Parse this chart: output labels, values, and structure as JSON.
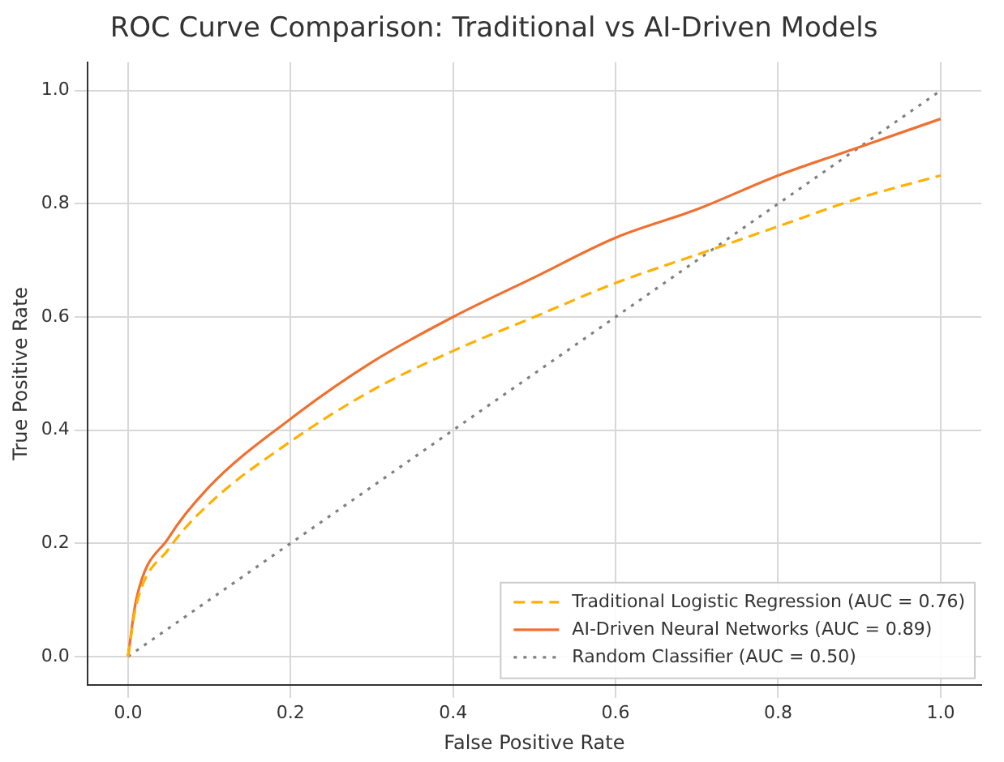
{
  "chart_data": {
    "type": "line",
    "title": "ROC Curve Comparison: Traditional vs AI-Driven Models",
    "xlabel": "False Positive Rate",
    "ylabel": "True Positive Rate",
    "xlim": [
      -0.05,
      1.05
    ],
    "ylim": [
      -0.05,
      1.05
    ],
    "xticks": [
      {
        "value": 0,
        "label": "0.0"
      },
      0.2,
      0.4,
      0.6,
      0.8,
      {
        "value": 1,
        "label": "1.0"
      }
    ],
    "yticks": [
      {
        "value": 0,
        "label": "0.0"
      },
      0.2,
      0.4,
      0.6,
      0.8,
      {
        "value": 1,
        "label": "1.0"
      }
    ],
    "grid": true,
    "legend": "bottom right",
    "series": [
      {
        "name": "Traditional Logistic Regression (AUC = 0.76)",
        "color": "#ffb000",
        "line_style": "dashed",
        "x": [
          0,
          0.01,
          0.05,
          0.1,
          0.2,
          0.3,
          0.4,
          0.5,
          0.6,
          0.7,
          0.8,
          0.9,
          1
        ],
        "values": [
          0,
          0.09,
          0.19,
          0.27,
          0.38,
          0.47,
          0.54,
          0.6,
          0.66,
          0.71,
          0.76,
          0.81,
          0.85
        ]
      },
      {
        "name": "AI-Driven Neural Networks (AUC = 0.89)",
        "color": "#f07030",
        "line_style": "solid",
        "x": [
          0,
          0.01,
          0.05,
          0.1,
          0.2,
          0.3,
          0.4,
          0.5,
          0.6,
          0.7,
          0.8,
          0.9,
          1
        ],
        "values": [
          0,
          0.1,
          0.21,
          0.3,
          0.42,
          0.52,
          0.6,
          0.67,
          0.74,
          0.79,
          0.85,
          0.9,
          0.95
        ]
      },
      {
        "name": "Random Classifier (AUC = 0.50)",
        "color": "#808080",
        "line_style": "dotted",
        "x": [
          0,
          1
        ],
        "values": [
          0,
          1
        ]
      }
    ]
  }
}
